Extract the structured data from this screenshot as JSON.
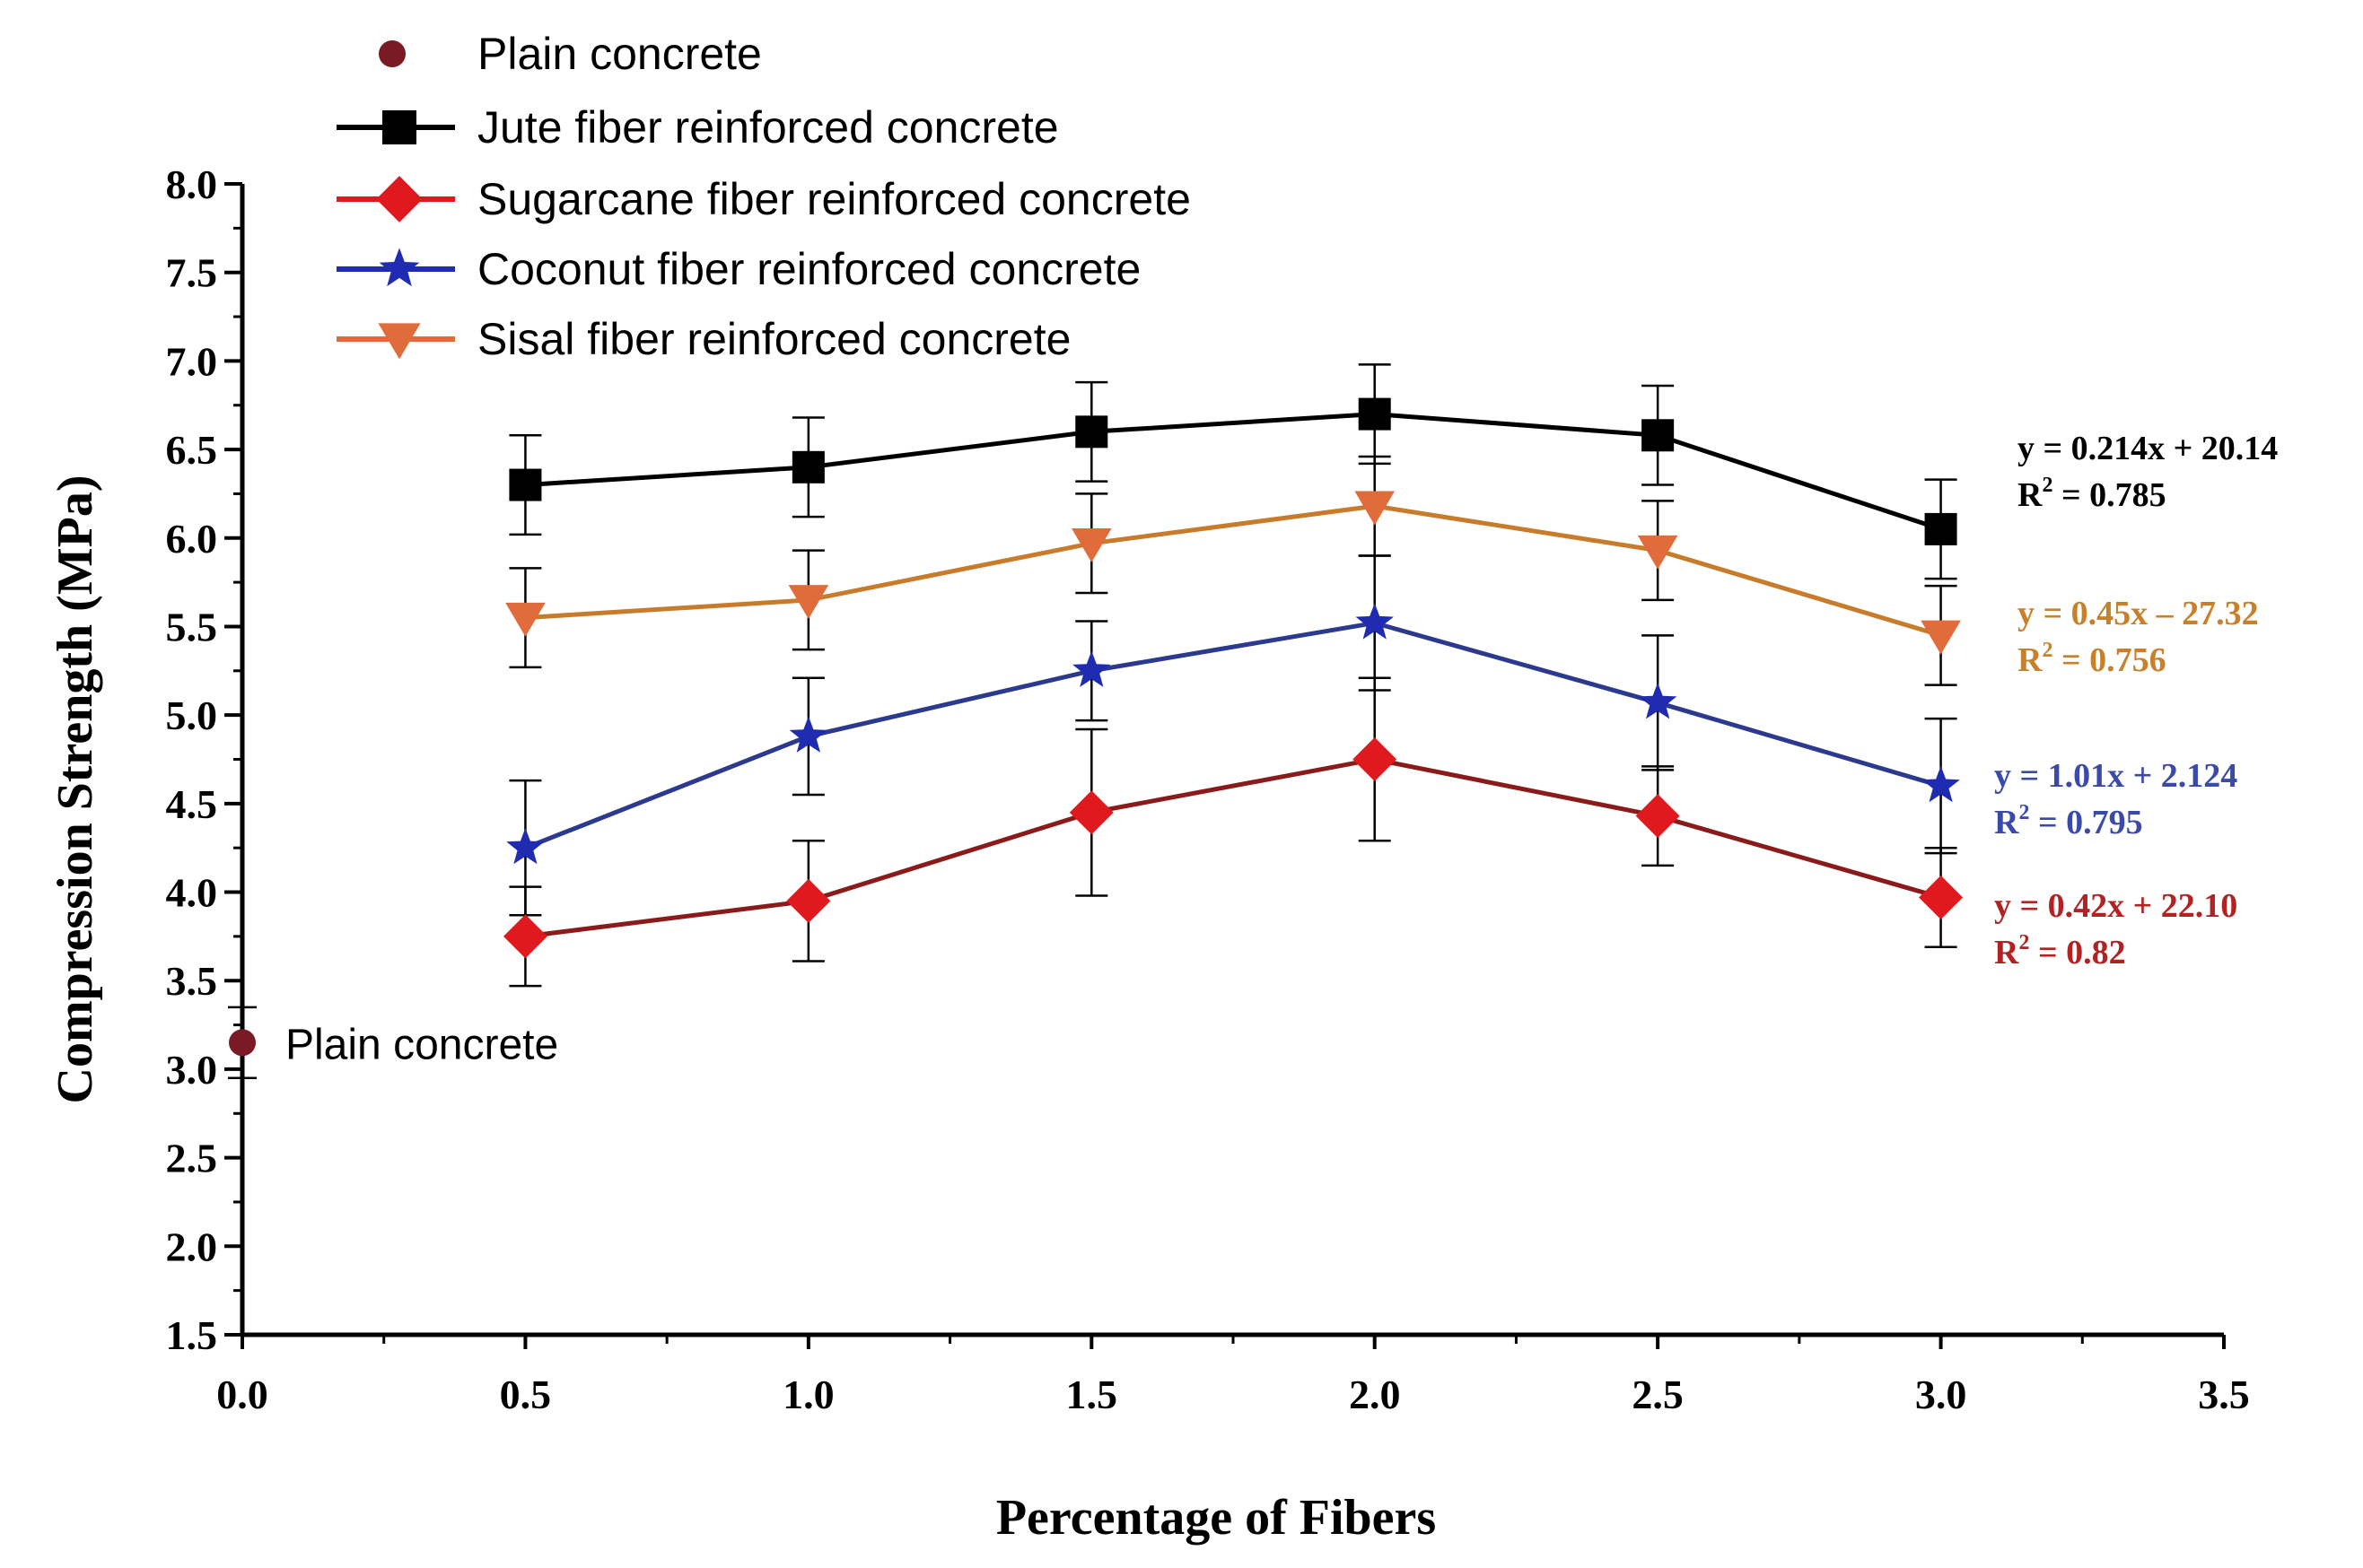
{
  "chart_data": {
    "type": "line",
    "title": "",
    "xlabel": "Percentage of Fibers",
    "ylabel": "Compression Strength (MPa)",
    "xlim": [
      0.0,
      3.5
    ],
    "ylim": [
      1.5,
      8.0
    ],
    "xticks": [
      0.0,
      0.5,
      1.0,
      1.5,
      2.0,
      2.5,
      3.0,
      3.5
    ],
    "xtick_labels": [
      "0.0",
      "0.5",
      "1.0",
      "1.5",
      "2.0",
      "2.5",
      "3.0",
      "3.5"
    ],
    "yticks": [
      1.5,
      2.0,
      2.5,
      3.0,
      3.5,
      4.0,
      4.5,
      5.0,
      5.5,
      6.0,
      6.5,
      7.0,
      7.5,
      8.0
    ],
    "ytick_labels": [
      "1.5",
      "2.0",
      "2.5",
      "3.0",
      "3.5",
      "4.0",
      "4.5",
      "5.0",
      "5.5",
      "6.0",
      "6.5",
      "7.0",
      "7.5",
      "8.0"
    ],
    "grid": false,
    "legend_position": "top-left",
    "plain": {
      "name": "Plain concrete",
      "x": 0.0,
      "y": 3.15,
      "err": 0.2,
      "color": "#7a1a24",
      "annotation": "Plain concrete"
    },
    "series": [
      {
        "name": "Jute fiber reinforced concrete",
        "marker": "square",
        "color": "#000000",
        "x": [
          0.5,
          1.0,
          1.5,
          2.0,
          2.5,
          3.0
        ],
        "values": [
          6.3,
          6.4,
          6.6,
          6.7,
          6.58,
          6.05
        ],
        "errors": [
          0.28,
          0.28,
          0.28,
          0.28,
          0.28,
          0.28
        ],
        "equation": "y = 0.214x + 20.14",
        "r2_label": "R",
        "r2_value": " = 0.785"
      },
      {
        "name": "Sugarcane fiber reinforced concrete",
        "marker": "diamond",
        "color": "#e0191e",
        "line_color": "#8b1a1a",
        "x": [
          0.5,
          1.0,
          1.5,
          2.0,
          2.5,
          3.0
        ],
        "values": [
          3.75,
          3.95,
          4.45,
          4.75,
          4.43,
          3.97
        ],
        "errors": [
          0.28,
          0.34,
          0.47,
          0.46,
          0.28,
          0.28
        ],
        "equation": "y = 0.42x + 22.10",
        "r2_label": "R",
        "r2_value": " = 0.82"
      },
      {
        "name": "Coconut fiber reinforced concrete",
        "marker": "star",
        "color": "#1f2bb0",
        "line_color": "#2b3a8f",
        "x": [
          0.5,
          1.0,
          1.5,
          2.0,
          2.5,
          3.0
        ],
        "values": [
          4.25,
          4.88,
          5.25,
          5.52,
          5.07,
          4.6
        ],
        "errors": [
          0.38,
          0.33,
          0.28,
          0.38,
          0.38,
          0.38
        ],
        "equation": "y = 1.01x + 2.124",
        "r2_label": "R",
        "r2_value": "  = 0.795"
      },
      {
        "name": "Sisal fiber reinforced concrete",
        "marker": "triangle-down",
        "color": "#e06b3b",
        "line_color": "#c87b2a",
        "x": [
          0.5,
          1.0,
          1.5,
          2.0,
          2.5,
          3.0
        ],
        "values": [
          5.55,
          5.65,
          5.97,
          6.18,
          5.93,
          5.45
        ],
        "errors": [
          0.28,
          0.28,
          0.28,
          0.28,
          0.28,
          0.28
        ],
        "equation": "y = 0.45x – 27.32",
        "r2_label": "R",
        "r2_value": " = 0.756"
      }
    ]
  },
  "colors": {
    "axis": "#000000",
    "jute_text": "#000000",
    "sugarcane_text": "#b22222",
    "coconut_text": "#3a4aa8",
    "sisal_text": "#c8802a"
  }
}
